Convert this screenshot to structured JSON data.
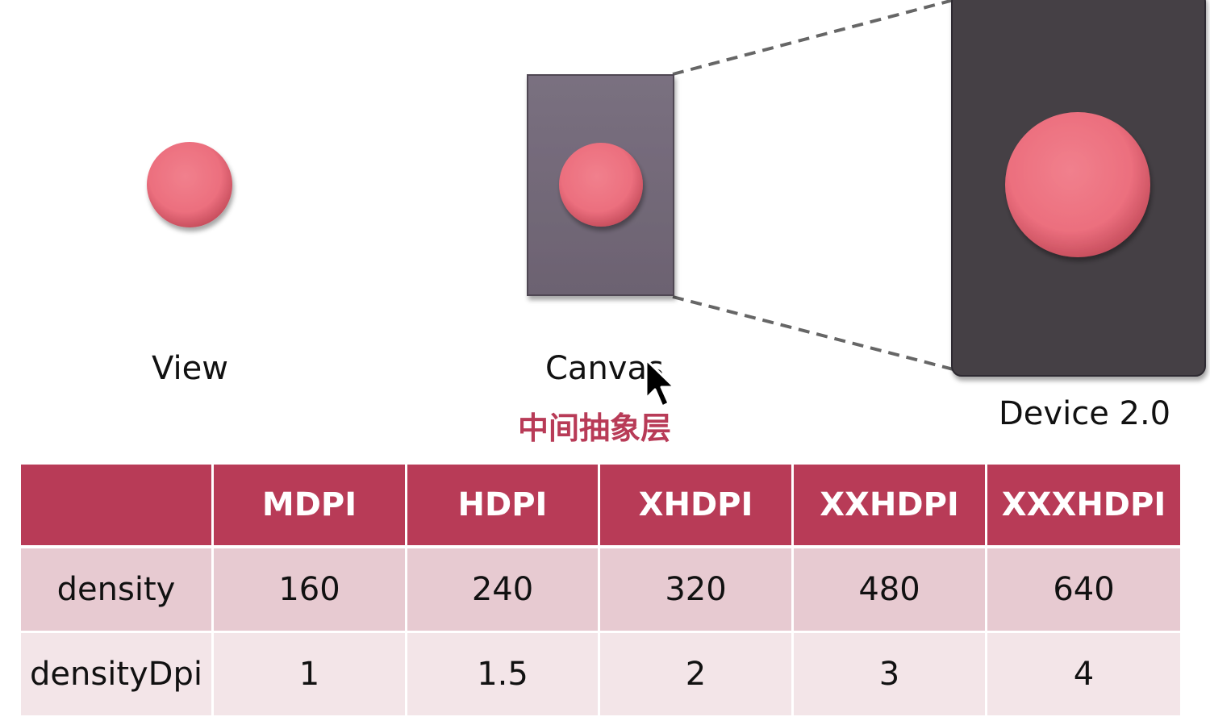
{
  "diagram": {
    "labels": {
      "view": "View",
      "canvas": "Canvas",
      "device": "Device 2.0",
      "middle_layer": "中间抽象层"
    },
    "colors": {
      "circle": "#ee717f",
      "canvas_box": "#736878",
      "device_box": "#444145",
      "accent": "#b83b57",
      "dash_line": "#666666"
    }
  },
  "table": {
    "headers": [
      "",
      "MDPI",
      "HDPI",
      "XHDPI",
      "XXHDPI",
      "XXXHDPI"
    ],
    "rows": [
      {
        "label": "density",
        "values": [
          "160",
          "240",
          "320",
          "480",
          "640"
        ]
      },
      {
        "label": "densityDpi",
        "values": [
          "1",
          "1.5",
          "2",
          "3",
          "4"
        ]
      }
    ],
    "colors": {
      "header_bg": "#b83b57",
      "row1_bg": "#e7cad1",
      "row2_bg": "#f3e5e8"
    }
  }
}
